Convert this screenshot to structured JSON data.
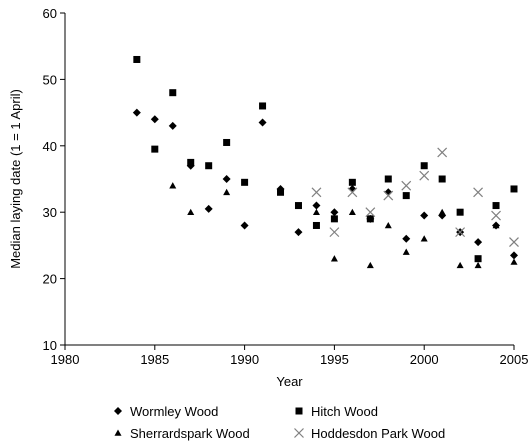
{
  "chart_data": {
    "type": "scatter",
    "xlabel": "Year",
    "ylabel": "Median laying date (1 = 1 April)",
    "xlim": [
      1980,
      2005
    ],
    "ylim": [
      10,
      60
    ],
    "x_ticks": [
      1980,
      1985,
      1990,
      1995,
      2000,
      2005
    ],
    "y_ticks": [
      10,
      20,
      30,
      40,
      50,
      60
    ],
    "grid": false,
    "legend_position": "bottom",
    "series": [
      {
        "name": "Wormley Wood",
        "marker": "diamond",
        "color": "#000000",
        "points": [
          [
            1984,
            45
          ],
          [
            1985,
            44
          ],
          [
            1986,
            43
          ],
          [
            1987,
            37
          ],
          [
            1988,
            30.5
          ],
          [
            1989,
            35
          ],
          [
            1990,
            28
          ],
          [
            1991,
            43.5
          ],
          [
            1992,
            33.5
          ],
          [
            1993,
            27
          ],
          [
            1994,
            31
          ],
          [
            1995,
            30
          ],
          [
            1996,
            33.5
          ],
          [
            1997,
            29
          ],
          [
            1998,
            33
          ],
          [
            1999,
            26
          ],
          [
            2000,
            29.5
          ],
          [
            2001,
            29.5
          ],
          [
            2002,
            27
          ],
          [
            2003,
            25.5
          ],
          [
            2004,
            28
          ],
          [
            2005,
            23.5
          ]
        ]
      },
      {
        "name": "Hitch Wood",
        "marker": "square",
        "color": "#000000",
        "points": [
          [
            1984,
            53
          ],
          [
            1985,
            39.5
          ],
          [
            1986,
            48
          ],
          [
            1987,
            37.5
          ],
          [
            1988,
            37
          ],
          [
            1989,
            40.5
          ],
          [
            1990,
            34.5
          ],
          [
            1991,
            46
          ],
          [
            1992,
            33
          ],
          [
            1993,
            31
          ],
          [
            1994,
            28
          ],
          [
            1995,
            29
          ],
          [
            1996,
            34.5
          ],
          [
            1997,
            29
          ],
          [
            1998,
            35
          ],
          [
            1999,
            32.5
          ],
          [
            2000,
            37
          ],
          [
            2001,
            35
          ],
          [
            2002,
            30
          ],
          [
            2003,
            23
          ],
          [
            2004,
            31
          ],
          [
            2005,
            33.5
          ]
        ]
      },
      {
        "name": "Sherrardspark Wood",
        "marker": "triangle",
        "color": "#000000",
        "points": [
          [
            1986,
            34
          ],
          [
            1987,
            30
          ],
          [
            1989,
            33
          ],
          [
            1992,
            33.5
          ],
          [
            1994,
            30
          ],
          [
            1995,
            23
          ],
          [
            1996,
            30
          ],
          [
            1997,
            22
          ],
          [
            1998,
            28
          ],
          [
            1999,
            24
          ],
          [
            2000,
            26
          ],
          [
            2001,
            30
          ],
          [
            2002,
            22
          ],
          [
            2003,
            22
          ],
          [
            2004,
            28
          ],
          [
            2005,
            22.5
          ]
        ]
      },
      {
        "name": "Hoddesdon Park Wood",
        "marker": "cross",
        "color": "#808080",
        "points": [
          [
            1994,
            33
          ],
          [
            1995,
            27
          ],
          [
            1996,
            33
          ],
          [
            1997,
            30
          ],
          [
            1998,
            32.5
          ],
          [
            1999,
            34
          ],
          [
            2000,
            35.5
          ],
          [
            2001,
            39
          ],
          [
            2002,
            27
          ],
          [
            2003,
            33
          ],
          [
            2004,
            29.5
          ],
          [
            2005,
            25.5
          ]
        ]
      }
    ]
  }
}
